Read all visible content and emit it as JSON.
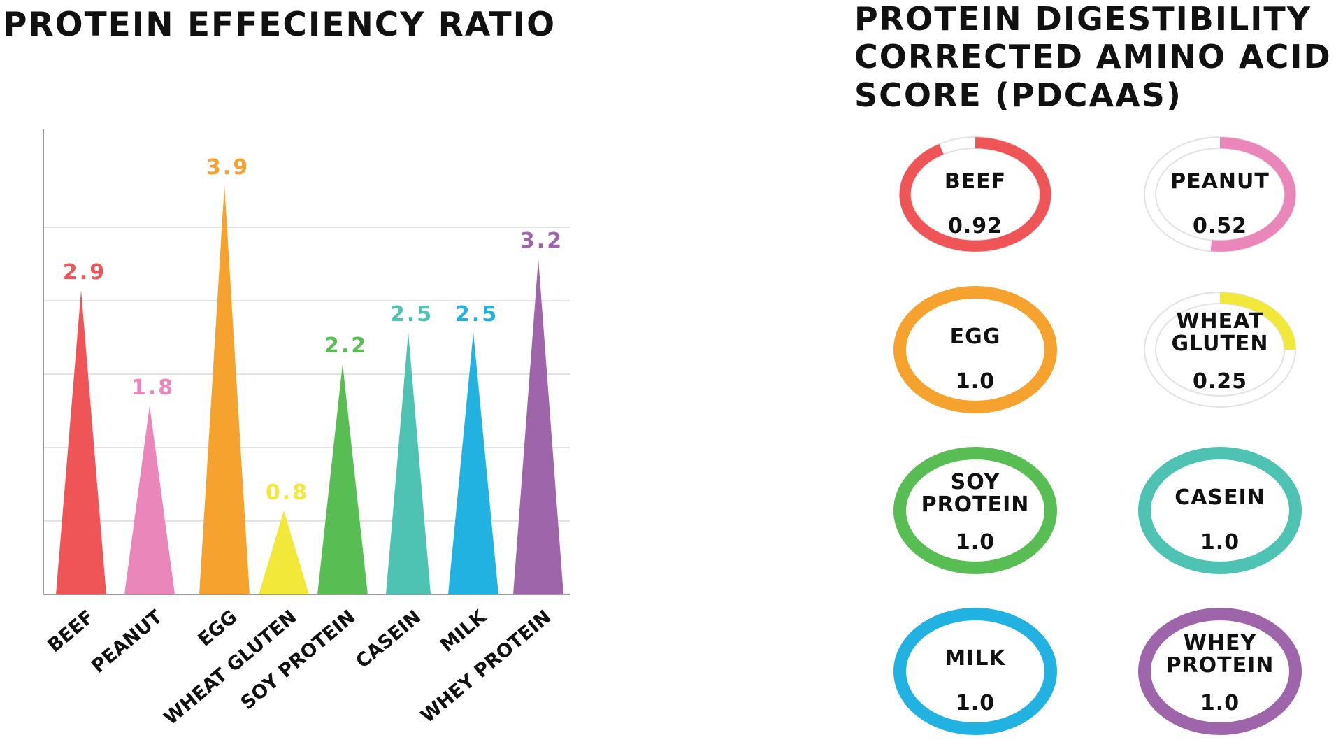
{
  "per": {
    "title": "PROTEIN EFFECIENCY RATIO"
  },
  "pdcaas": {
    "title": "PROTEIN DIGESTIBILITY\nCORRECTED AMINO ACID\nSCORE (PDCAAS)",
    "items": [
      {
        "label": "BEEF",
        "value": "0.92",
        "score": 0.92,
        "color": "#ef5556"
      },
      {
        "label": "PEANUT",
        "value": "0.52",
        "score": 0.52,
        "color": "#ea86b9"
      },
      {
        "label": "EGG",
        "value": "1.0",
        "score": 1.0,
        "color": "#f6a22e"
      },
      {
        "label": "WHEAT\nGLUTEN",
        "value": "0.25",
        "score": 0.25,
        "color": "#f2e83a"
      },
      {
        "label": "SOY\nPROTEIN",
        "value": "1.0",
        "score": 1.0,
        "color": "#58bd53"
      },
      {
        "label": "CASEIN",
        "value": "1.0",
        "score": 1.0,
        "color": "#4ec2b3"
      },
      {
        "label": "MILK",
        "value": "1.0",
        "score": 1.0,
        "color": "#22b2e2"
      },
      {
        "label": "WHEY\nPROTEIN",
        "value": "1.0",
        "score": 1.0,
        "color": "#9f65aa"
      }
    ]
  },
  "chart_data": [
    {
      "type": "bar",
      "title": "PROTEIN EFFECIENCY RATIO",
      "categories": [
        "BEEF",
        "PEANUT",
        "EGG",
        "WHEAT GLUTEN",
        "SOY PROTEIN",
        "CASEIN",
        "MILK",
        "WHEY PROTEIN"
      ],
      "values": [
        2.9,
        1.8,
        3.9,
        0.8,
        2.2,
        2.5,
        2.5,
        3.2
      ],
      "data_labels": [
        "2.9",
        "1.8",
        "3.9",
        "0.8",
        "2.2",
        "2.5",
        "2.5",
        "3.2"
      ],
      "colors": [
        "#ef5556",
        "#ea86b9",
        "#f6a22e",
        "#f2e83a",
        "#58bd53",
        "#4ec2b3",
        "#22b2e2",
        "#9f65aa"
      ],
      "xlabel": "",
      "ylabel": "",
      "ylim": [
        0,
        4
      ],
      "grid": true,
      "bar_shape": "triangle"
    },
    {
      "type": "pie",
      "title": "PROTEIN DIGESTIBILITY CORRECTED AMINO ACID SCORE (PDCAAS)",
      "categories": [
        "BEEF",
        "PEANUT",
        "EGG",
        "WHEAT GLUTEN",
        "SOY PROTEIN",
        "CASEIN",
        "MILK",
        "WHEY PROTEIN"
      ],
      "values": [
        0.92,
        0.52,
        1.0,
        0.25,
        1.0,
        1.0,
        1.0,
        1.0
      ],
      "data_labels": [
        "0.92",
        "0.52",
        "1.0",
        "0.25",
        "1.0",
        "1.0",
        "1.0",
        "1.0"
      ],
      "max": 1.0,
      "style": "ring gauge"
    }
  ]
}
